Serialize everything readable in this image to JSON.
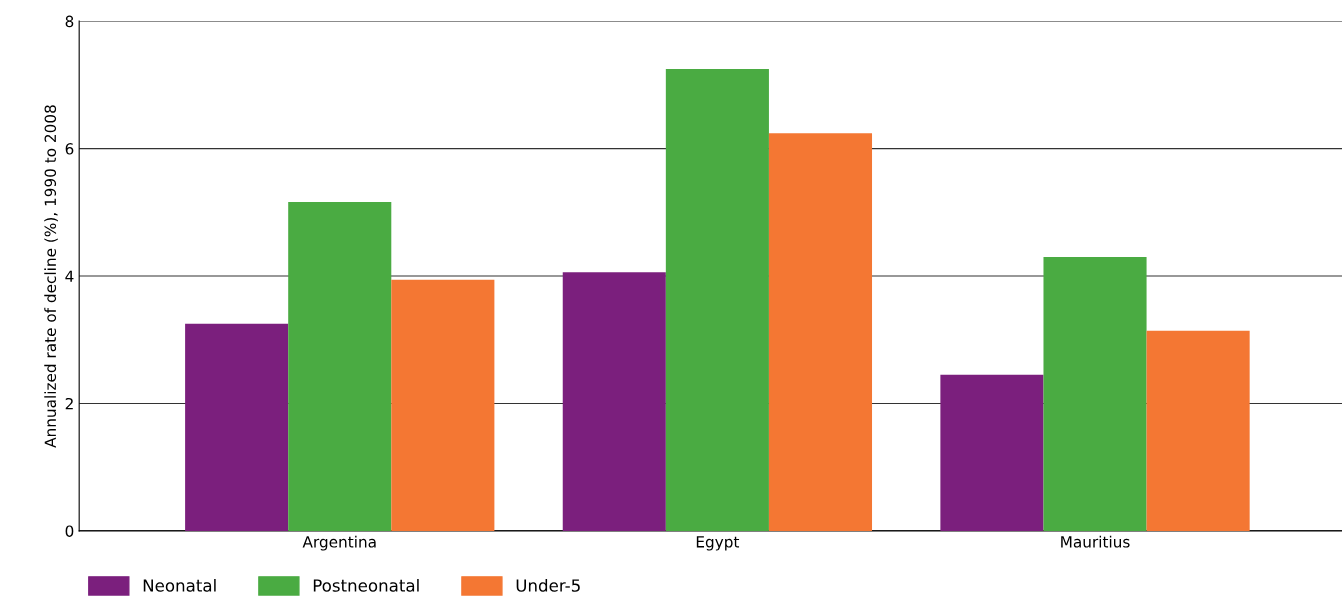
{
  "chart_data": {
    "type": "bar",
    "ylabel": "Annualized rate of decline (%), 1990 to 2008",
    "categories": [
      "Argentina",
      "Egypt",
      "Mauritius"
    ],
    "series": [
      {
        "name": "Neonatal",
        "color": "#7b1f7d",
        "values": [
          3.25,
          4.06,
          2.45
        ]
      },
      {
        "name": "Postneonatal",
        "color": "#4aab42",
        "values": [
          5.16,
          7.25,
          4.3
        ]
      },
      {
        "name": "Under-5",
        "color": "#f47733",
        "values": [
          3.94,
          6.24,
          3.14
        ]
      }
    ],
    "ylim": [
      0,
      8
    ],
    "yticks": [
      0,
      2,
      4,
      6,
      8
    ],
    "grid": "y",
    "legend": "bottom left"
  }
}
